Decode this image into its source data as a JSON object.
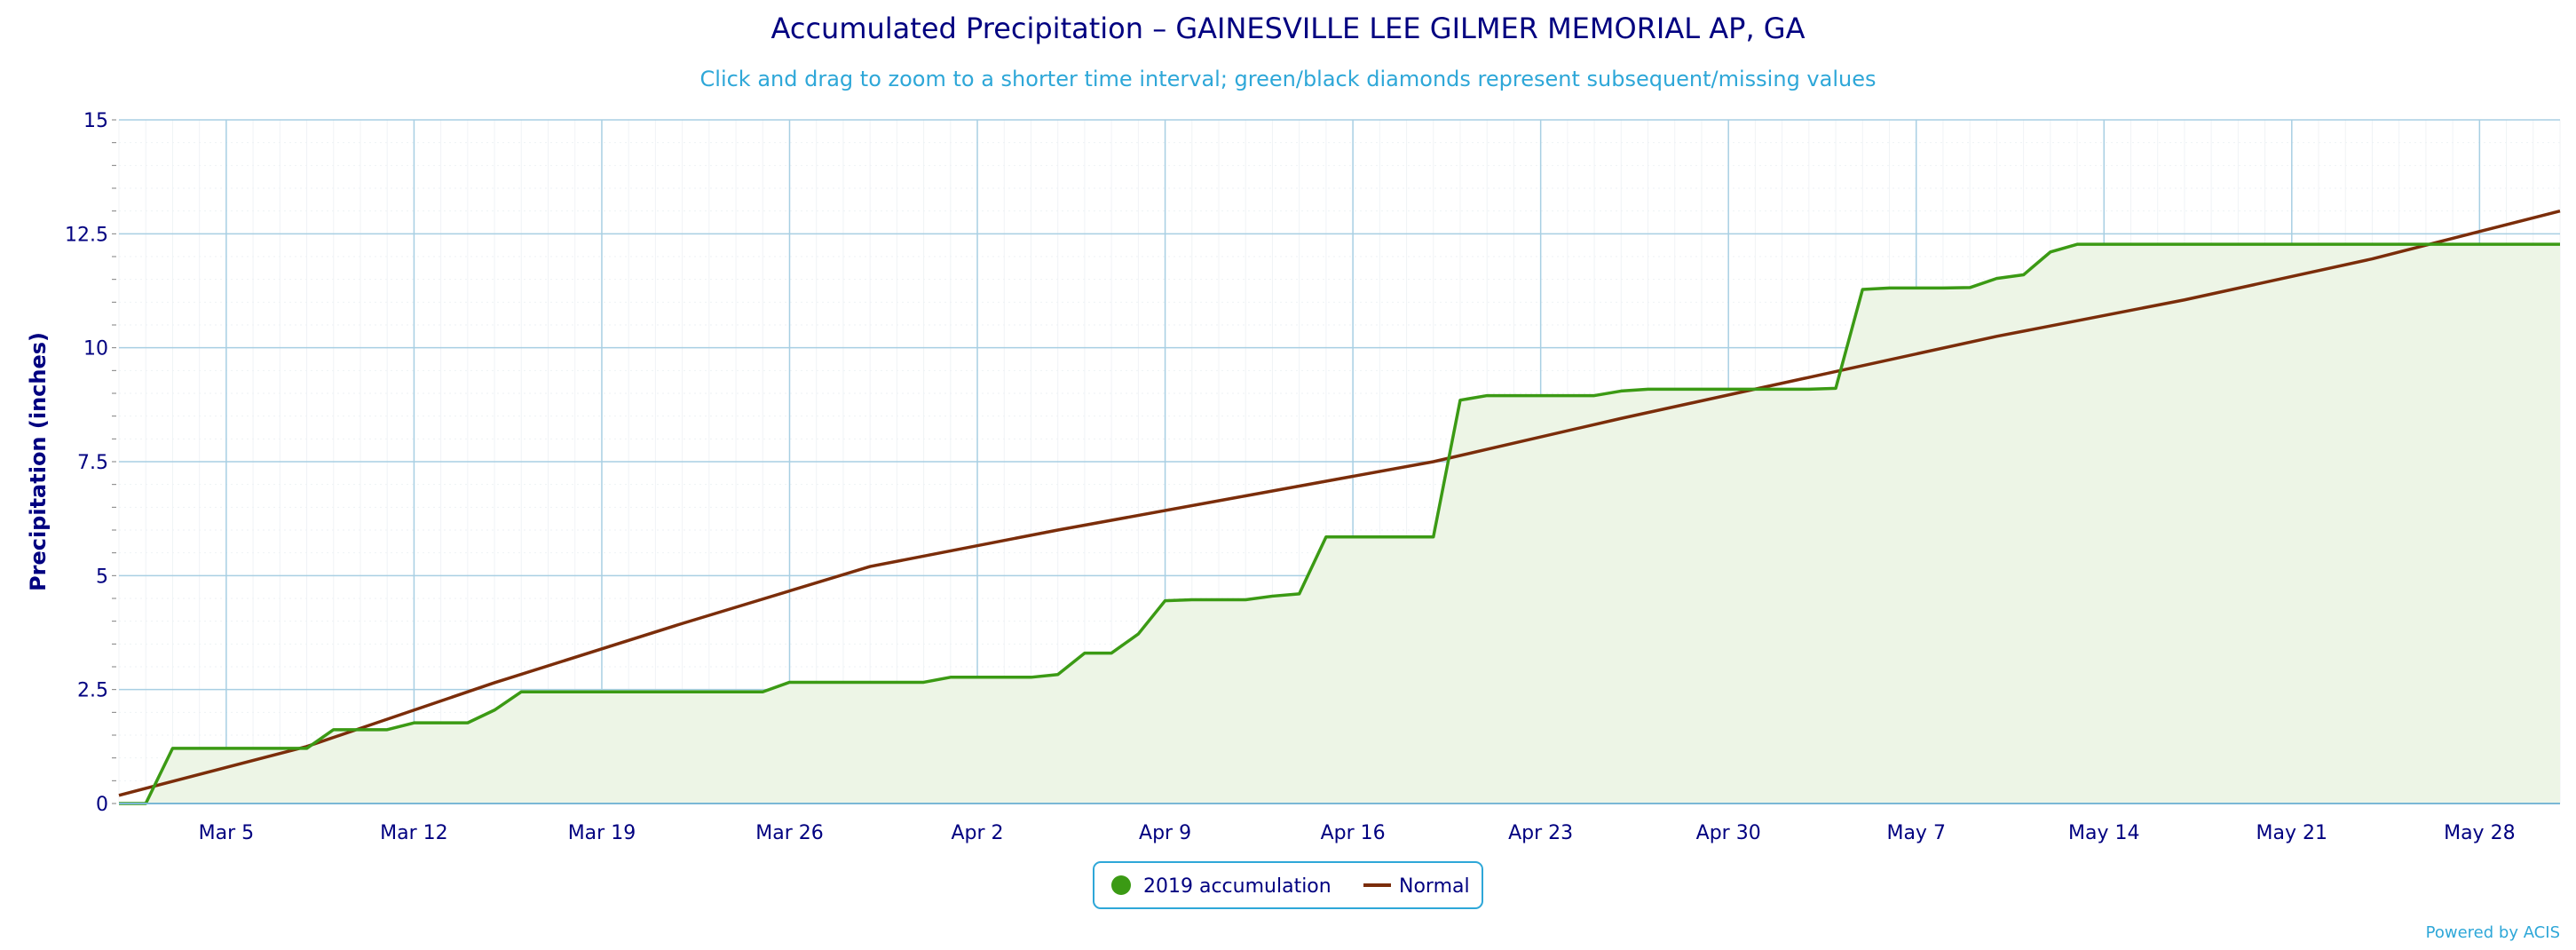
{
  "colors": {
    "accumulation": "#3b9a14",
    "accumulation_fill": "#edf5e6",
    "normal": "#7b2d0a",
    "grid": "#a8cfe3",
    "axis_text": "#000080",
    "subtitle": "#2ea7d8"
  },
  "chart_data": {
    "type": "area",
    "title": "Accumulated Precipitation – GAINESVILLE LEE GILMER MEMORIAL AP, GA",
    "subtitle": "Click and drag to zoom to a shorter time interval; green/black diamonds represent subsequent/missing values",
    "xlabel": "",
    "ylabel": "Precipitation (inches)",
    "x_range": [
      "2019-03-01",
      "2019-05-31"
    ],
    "ylim": [
      0,
      15
    ],
    "y_ticks": [
      0,
      2.5,
      5,
      7.5,
      10,
      12.5,
      15
    ],
    "y_tick_labels": [
      "0",
      "2.5",
      "5",
      "7.5",
      "10",
      "12.5",
      "15"
    ],
    "x_ticks": [
      "2019-03-05",
      "2019-03-12",
      "2019-03-19",
      "2019-03-26",
      "2019-04-02",
      "2019-04-09",
      "2019-04-16",
      "2019-04-23",
      "2019-04-30",
      "2019-05-07",
      "2019-05-14",
      "2019-05-21",
      "2019-05-28"
    ],
    "x_tick_labels": [
      "Mar 5",
      "Mar 12",
      "Mar 19",
      "Mar 26",
      "Apr 2",
      "Apr 9",
      "Apr 16",
      "Apr 23",
      "Apr 30",
      "May 7",
      "May 14",
      "May 21",
      "May 28"
    ],
    "grid": true,
    "legend_position": "bottom-center",
    "series": [
      {
        "name": "2019 accumulation",
        "type": "area",
        "points": [
          [
            "2019-03-01",
            0.0
          ],
          [
            "2019-03-02",
            0.0
          ],
          [
            "2019-03-03",
            1.21
          ],
          [
            "2019-03-04",
            1.21
          ],
          [
            "2019-03-05",
            1.21
          ],
          [
            "2019-03-06",
            1.21
          ],
          [
            "2019-03-07",
            1.21
          ],
          [
            "2019-03-08",
            1.21
          ],
          [
            "2019-03-09",
            1.62
          ],
          [
            "2019-03-10",
            1.62
          ],
          [
            "2019-03-11",
            1.62
          ],
          [
            "2019-03-12",
            1.77
          ],
          [
            "2019-03-13",
            1.77
          ],
          [
            "2019-03-14",
            1.77
          ],
          [
            "2019-03-15",
            2.05
          ],
          [
            "2019-03-16",
            2.45
          ],
          [
            "2019-03-17",
            2.45
          ],
          [
            "2019-03-18",
            2.45
          ],
          [
            "2019-03-19",
            2.45
          ],
          [
            "2019-03-20",
            2.45
          ],
          [
            "2019-03-21",
            2.45
          ],
          [
            "2019-03-22",
            2.45
          ],
          [
            "2019-03-23",
            2.45
          ],
          [
            "2019-03-24",
            2.45
          ],
          [
            "2019-03-25",
            2.45
          ],
          [
            "2019-03-26",
            2.66
          ],
          [
            "2019-03-27",
            2.66
          ],
          [
            "2019-03-28",
            2.66
          ],
          [
            "2019-03-29",
            2.66
          ],
          [
            "2019-03-30",
            2.66
          ],
          [
            "2019-03-31",
            2.66
          ],
          [
            "2019-04-01",
            2.77
          ],
          [
            "2019-04-02",
            2.77
          ],
          [
            "2019-04-03",
            2.77
          ],
          [
            "2019-04-04",
            2.77
          ],
          [
            "2019-04-05",
            2.83
          ],
          [
            "2019-04-06",
            3.3
          ],
          [
            "2019-04-07",
            3.3
          ],
          [
            "2019-04-08",
            3.72
          ],
          [
            "2019-04-09",
            4.45
          ],
          [
            "2019-04-10",
            4.47
          ],
          [
            "2019-04-11",
            4.47
          ],
          [
            "2019-04-12",
            4.47
          ],
          [
            "2019-04-13",
            4.55
          ],
          [
            "2019-04-14",
            4.6
          ],
          [
            "2019-04-15",
            5.85
          ],
          [
            "2019-04-16",
            5.85
          ],
          [
            "2019-04-17",
            5.85
          ],
          [
            "2019-04-18",
            5.85
          ],
          [
            "2019-04-19",
            5.85
          ],
          [
            "2019-04-20",
            8.85
          ],
          [
            "2019-04-21",
            8.95
          ],
          [
            "2019-04-22",
            8.95
          ],
          [
            "2019-04-23",
            8.95
          ],
          [
            "2019-04-24",
            8.95
          ],
          [
            "2019-04-25",
            8.95
          ],
          [
            "2019-04-26",
            9.05
          ],
          [
            "2019-04-27",
            9.09
          ],
          [
            "2019-04-28",
            9.09
          ],
          [
            "2019-04-29",
            9.09
          ],
          [
            "2019-04-30",
            9.09
          ],
          [
            "2019-05-01",
            9.09
          ],
          [
            "2019-05-02",
            9.09
          ],
          [
            "2019-05-03",
            9.09
          ],
          [
            "2019-05-04",
            9.11
          ],
          [
            "2019-05-05",
            11.28
          ],
          [
            "2019-05-06",
            11.31
          ],
          [
            "2019-05-07",
            11.31
          ],
          [
            "2019-05-08",
            11.31
          ],
          [
            "2019-05-09",
            11.32
          ],
          [
            "2019-05-10",
            11.52
          ],
          [
            "2019-05-11",
            11.6
          ],
          [
            "2019-05-12",
            12.1
          ],
          [
            "2019-05-13",
            12.27
          ],
          [
            "2019-05-14",
            12.27
          ],
          [
            "2019-05-31",
            12.27
          ]
        ]
      },
      {
        "name": "Normal",
        "type": "line",
        "points": [
          [
            "2019-03-01",
            0.18
          ],
          [
            "2019-03-08",
            1.25
          ],
          [
            "2019-03-15",
            2.65
          ],
          [
            "2019-03-22",
            3.95
          ],
          [
            "2019-03-29",
            5.2
          ],
          [
            "2019-04-05",
            6.0
          ],
          [
            "2019-04-12",
            6.75
          ],
          [
            "2019-04-19",
            7.5
          ],
          [
            "2019-04-26",
            8.45
          ],
          [
            "2019-05-03",
            9.35
          ],
          [
            "2019-05-10",
            10.25
          ],
          [
            "2019-05-17",
            11.05
          ],
          [
            "2019-05-24",
            11.95
          ],
          [
            "2019-05-31",
            13.0
          ]
        ]
      }
    ],
    "credits": "Powered by ACIS"
  }
}
